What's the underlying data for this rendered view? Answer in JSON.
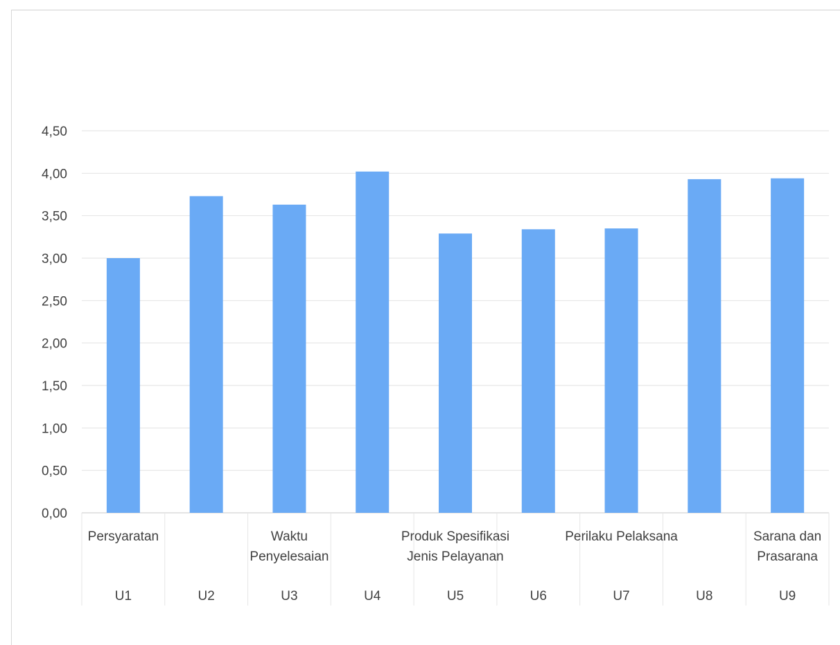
{
  "chart_data": {
    "type": "bar",
    "title": "",
    "xlabel": "",
    "ylabel": "",
    "ylim": [
      0,
      4.5
    ],
    "yticks": [
      "0,00",
      "0,50",
      "1,00",
      "1,50",
      "2,00",
      "2,50",
      "3,00",
      "3,50",
      "4,00",
      "4,50"
    ],
    "grid": true,
    "bar_color": "#6aaaf5",
    "categories": [
      "U1",
      "U2",
      "U3",
      "U4",
      "U5",
      "U6",
      "U7",
      "U8",
      "U9"
    ],
    "group_labels": [
      {
        "text": [
          "Persyaratan"
        ],
        "category_index": 0
      },
      {
        "text": [
          "Waktu",
          "Penyelesaian"
        ],
        "category_index": 2
      },
      {
        "text": [
          "Produk Spesifikasi",
          "Jenis Pelayanan"
        ],
        "category_index": 4
      },
      {
        "text": [
          "Perilaku Pelaksana"
        ],
        "category_index": 6
      },
      {
        "text": [
          "Sarana dan",
          "Prasarana"
        ],
        "category_index": 8
      }
    ],
    "values": [
      3.0,
      3.73,
      3.63,
      4.02,
      3.29,
      3.34,
      3.35,
      3.93,
      3.94
    ]
  }
}
